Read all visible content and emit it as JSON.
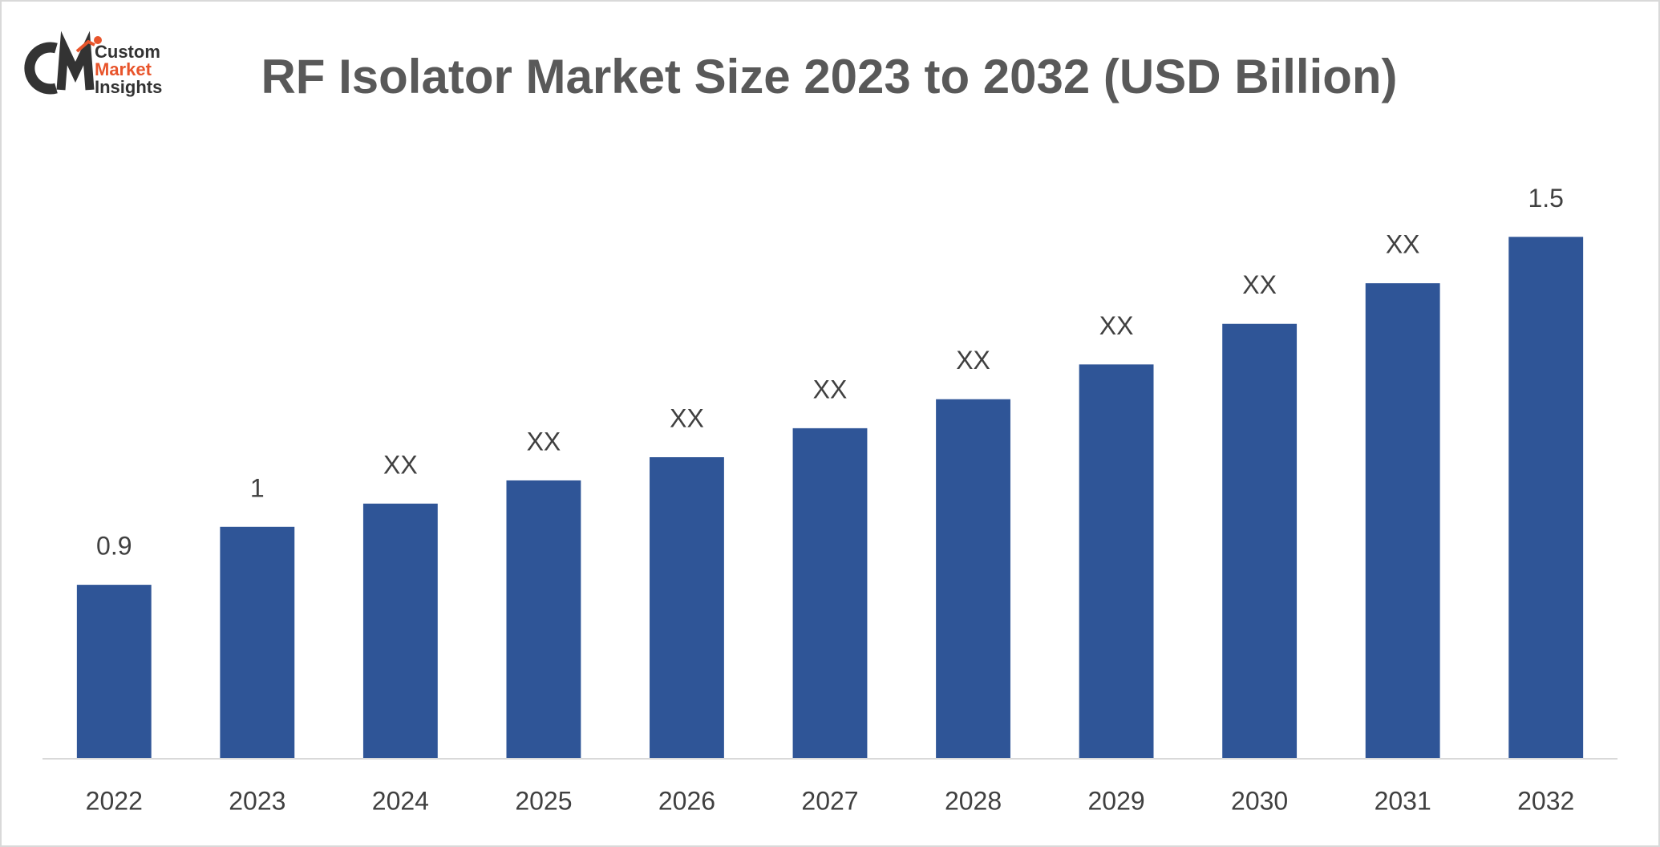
{
  "logo": {
    "lines": [
      "Custom",
      "Market",
      "Insights"
    ]
  },
  "chart_data": {
    "type": "bar",
    "title": "RF Isolator Market Size 2023 to 2032 (USD Billion)",
    "categories": [
      "2022",
      "2023",
      "2024",
      "2025",
      "2026",
      "2027",
      "2028",
      "2029",
      "2030",
      "2031",
      "2032"
    ],
    "values": [
      0.9,
      1,
      1.04,
      1.08,
      1.12,
      1.17,
      1.22,
      1.28,
      1.35,
      1.42,
      1.5
    ],
    "value_labels": [
      "0.9",
      "1",
      "XX",
      "XX",
      "XX",
      "XX",
      "XX",
      "XX",
      "XX",
      "XX",
      "1.5"
    ],
    "color": "#2f5597",
    "ylim": [
      0.6,
      1.6
    ]
  }
}
